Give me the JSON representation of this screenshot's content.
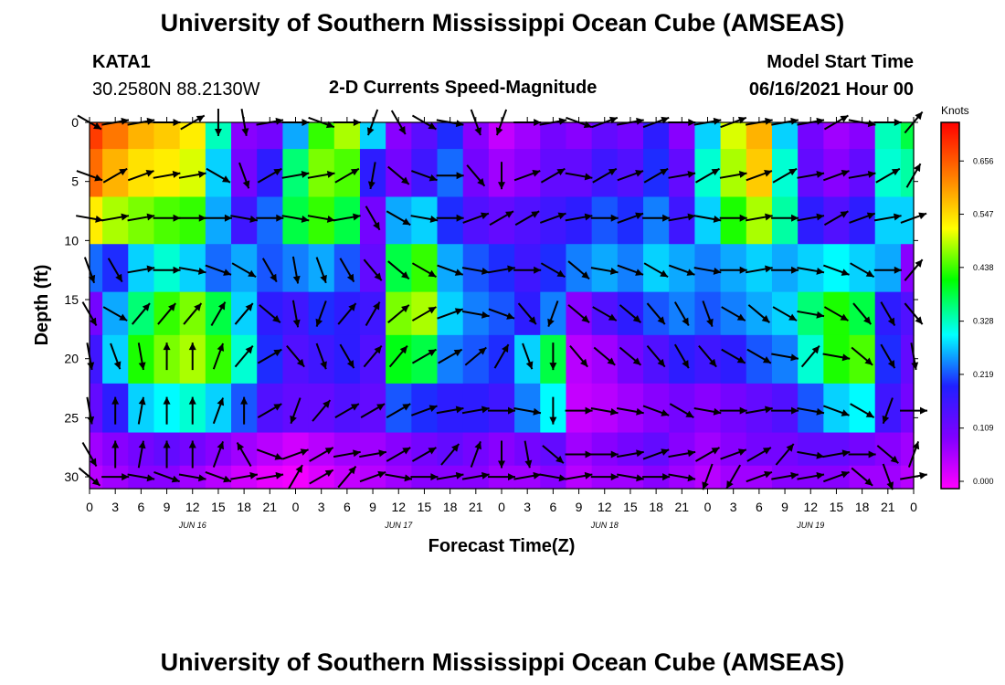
{
  "header": {
    "top_title": "University of Southern Mississippi Ocean Cube (AMSEAS)",
    "station": "KATA1",
    "coords": "30.2580N  88.2130W",
    "plot_title": "2-D Currents Speed-Magnitude",
    "start_label": "Model Start Time",
    "start_value": "06/16/2021 Hour 00"
  },
  "footer": {
    "bottom_title": "University of Southern Mississippi Ocean Cube (AMSEAS)"
  },
  "chart_data": {
    "type": "heatmap",
    "xlabel": "Forecast Time(Z)",
    "ylabel": "Depth (ft)",
    "x_unit": "hours since 06/16/2021 00Z",
    "xlim": [
      0,
      96
    ],
    "ylim": [
      0,
      31
    ],
    "y_ticks": [
      0,
      5,
      10,
      15,
      20,
      25,
      30
    ],
    "x_tick_labels": [
      "0",
      "3",
      "6",
      "9",
      "12",
      "15",
      "18",
      "21",
      "0",
      "3",
      "6",
      "9",
      "12",
      "15",
      "18",
      "21",
      "0",
      "3",
      "6",
      "9",
      "12",
      "15",
      "18",
      "21",
      "0",
      "3",
      "6",
      "9",
      "12",
      "15",
      "18",
      "21",
      "0"
    ],
    "day_labels": [
      {
        "text": "JUN 16",
        "hour": 12
      },
      {
        "text": "JUN 17",
        "hour": 36
      },
      {
        "text": "JUN 18",
        "hour": 60
      },
      {
        "text": "JUN 19",
        "hour": 84
      }
    ],
    "colorbar": {
      "unit": "Knots",
      "ticks": [
        "0.000",
        "0.109",
        "0.219",
        "0.328",
        "0.438",
        "0.547",
        "0.656"
      ],
      "range": [
        0,
        0.75
      ],
      "colors": [
        "#ff00ff",
        "#8000ff",
        "#2020ff",
        "#00ffff",
        "#00ff00",
        "#ffff00",
        "#ff8000",
        "#ff0000"
      ]
    },
    "depth_levels": [
      0,
      4.5,
      8.1,
      12.5,
      16.2,
      19.8,
      24.4,
      28.1,
      30.0
    ],
    "time_steps": [
      0,
      3,
      6,
      9,
      12,
      15,
      18,
      21,
      24,
      27,
      30,
      33,
      36,
      39,
      42,
      45,
      48,
      51,
      54,
      57,
      60,
      63,
      66,
      69,
      72,
      75,
      78,
      81,
      84,
      87,
      90,
      93,
      96
    ],
    "speed_knots": [
      [
        0.7,
        0.65,
        0.6,
        0.58,
        0.55,
        0.35,
        0.1,
        0.12,
        0.28,
        0.45,
        0.5,
        0.3,
        0.1,
        0.15,
        0.22,
        0.1,
        0.05,
        0.08,
        0.12,
        0.1,
        0.14,
        0.12,
        0.2,
        0.1,
        0.3,
        0.52,
        0.6,
        0.3,
        0.12,
        0.08,
        0.1,
        0.35,
        0.4
      ],
      [
        0.66,
        0.6,
        0.56,
        0.55,
        0.52,
        0.3,
        0.12,
        0.2,
        0.38,
        0.48,
        0.46,
        0.2,
        0.12,
        0.18,
        0.25,
        0.12,
        0.08,
        0.1,
        0.14,
        0.14,
        0.18,
        0.16,
        0.22,
        0.14,
        0.34,
        0.5,
        0.58,
        0.34,
        0.14,
        0.1,
        0.14,
        0.34,
        0.36
      ],
      [
        0.55,
        0.5,
        0.48,
        0.46,
        0.45,
        0.28,
        0.18,
        0.25,
        0.4,
        0.45,
        0.4,
        0.12,
        0.28,
        0.3,
        0.22,
        0.16,
        0.14,
        0.16,
        0.18,
        0.2,
        0.24,
        0.22,
        0.26,
        0.18,
        0.3,
        0.44,
        0.5,
        0.36,
        0.2,
        0.16,
        0.2,
        0.3,
        0.3
      ],
      [
        0.25,
        0.22,
        0.3,
        0.34,
        0.3,
        0.25,
        0.28,
        0.24,
        0.26,
        0.28,
        0.24,
        0.14,
        0.4,
        0.45,
        0.28,
        0.24,
        0.22,
        0.18,
        0.22,
        0.26,
        0.28,
        0.26,
        0.3,
        0.28,
        0.26,
        0.28,
        0.3,
        0.28,
        0.3,
        0.32,
        0.3,
        0.28,
        0.1
      ],
      [
        0.12,
        0.28,
        0.38,
        0.45,
        0.48,
        0.4,
        0.3,
        0.2,
        0.18,
        0.22,
        0.2,
        0.18,
        0.48,
        0.5,
        0.3,
        0.26,
        0.24,
        0.2,
        0.26,
        0.1,
        0.16,
        0.2,
        0.24,
        0.26,
        0.24,
        0.26,
        0.28,
        0.3,
        0.38,
        0.44,
        0.4,
        0.2,
        0.16
      ],
      [
        0.18,
        0.3,
        0.44,
        0.48,
        0.5,
        0.45,
        0.34,
        0.22,
        0.16,
        0.18,
        0.2,
        0.16,
        0.42,
        0.4,
        0.26,
        0.24,
        0.22,
        0.3,
        0.4,
        0.06,
        0.08,
        0.12,
        0.16,
        0.2,
        0.18,
        0.2,
        0.24,
        0.26,
        0.34,
        0.44,
        0.46,
        0.22,
        0.14
      ],
      [
        0.14,
        0.2,
        0.3,
        0.32,
        0.34,
        0.3,
        0.24,
        0.16,
        0.14,
        0.14,
        0.16,
        0.14,
        0.24,
        0.22,
        0.2,
        0.2,
        0.18,
        0.26,
        0.32,
        0.05,
        0.06,
        0.08,
        0.1,
        0.12,
        0.1,
        0.12,
        0.14,
        0.16,
        0.24,
        0.3,
        0.32,
        0.18,
        0.12
      ],
      [
        0.08,
        0.1,
        0.12,
        0.14,
        0.12,
        0.1,
        0.08,
        0.06,
        0.04,
        0.06,
        0.08,
        0.08,
        0.1,
        0.12,
        0.14,
        0.12,
        0.1,
        0.12,
        0.14,
        0.08,
        0.1,
        0.12,
        0.14,
        0.1,
        0.08,
        0.1,
        0.12,
        0.12,
        0.14,
        0.14,
        0.12,
        0.1,
        0.08
      ],
      [
        0.06,
        0.08,
        0.1,
        0.1,
        0.08,
        0.06,
        0.04,
        0.02,
        0.01,
        0.03,
        0.05,
        0.06,
        0.08,
        0.1,
        0.1,
        0.1,
        0.08,
        0.08,
        0.1,
        0.06,
        0.08,
        0.08,
        0.1,
        0.08,
        0.06,
        0.08,
        0.08,
        0.1,
        0.1,
        0.1,
        0.08,
        0.08,
        0.06
      ]
    ],
    "direction_deg": [
      [
        120,
        80,
        80,
        90,
        60,
        180,
        170,
        80,
        90,
        110,
        90,
        200,
        150,
        120,
        100,
        160,
        200,
        90,
        80,
        110,
        70,
        80,
        70,
        90,
        80,
        70,
        80,
        80,
        80,
        60,
        100,
        90,
        40
      ],
      [
        110,
        60,
        70,
        80,
        80,
        120,
        160,
        60,
        80,
        80,
        60,
        190,
        130,
        110,
        90,
        140,
        180,
        70,
        60,
        100,
        60,
        70,
        60,
        80,
        60,
        80,
        70,
        60,
        80,
        70,
        80,
        60,
        30
      ],
      [
        100,
        80,
        80,
        90,
        90,
        90,
        100,
        90,
        100,
        100,
        80,
        150,
        120,
        100,
        90,
        70,
        60,
        60,
        70,
        80,
        90,
        70,
        90,
        80,
        100,
        90,
        80,
        90,
        80,
        60,
        70,
        80,
        70
      ],
      [
        160,
        150,
        80,
        90,
        100,
        110,
        120,
        150,
        170,
        160,
        150,
        140,
        130,
        120,
        110,
        100,
        80,
        90,
        120,
        130,
        100,
        110,
        120,
        110,
        100,
        90,
        80,
        90,
        100,
        110,
        120,
        90,
        40
      ],
      [
        150,
        120,
        40,
        40,
        40,
        30,
        40,
        130,
        170,
        200,
        40,
        30,
        50,
        60,
        70,
        100,
        110,
        140,
        200,
        130,
        120,
        130,
        140,
        150,
        160,
        120,
        130,
        120,
        100,
        120,
        140,
        150,
        140
      ],
      [
        170,
        160,
        170,
        0,
        0,
        20,
        40,
        60,
        140,
        160,
        150,
        40,
        40,
        60,
        60,
        50,
        30,
        160,
        180,
        140,
        130,
        130,
        140,
        150,
        140,
        120,
        120,
        100,
        40,
        100,
        130,
        150,
        170
      ],
      [
        170,
        0,
        10,
        0,
        0,
        20,
        0,
        60,
        200,
        40,
        60,
        60,
        60,
        70,
        80,
        80,
        90,
        100,
        180,
        90,
        100,
        100,
        110,
        120,
        100,
        90,
        80,
        90,
        100,
        110,
        120,
        200,
        90
      ],
      [
        150,
        0,
        10,
        0,
        0,
        20,
        330,
        110,
        70,
        60,
        80,
        80,
        60,
        60,
        40,
        20,
        180,
        170,
        130,
        90,
        90,
        80,
        70,
        80,
        60,
        70,
        60,
        40,
        100,
        80,
        90,
        130,
        20
      ],
      [
        130,
        90,
        100,
        110,
        100,
        110,
        80,
        80,
        30,
        60,
        40,
        70,
        100,
        90,
        80,
        80,
        90,
        80,
        100,
        80,
        90,
        100,
        90,
        100,
        200,
        210,
        70,
        80,
        80,
        70,
        130,
        160,
        80
      ]
    ]
  }
}
